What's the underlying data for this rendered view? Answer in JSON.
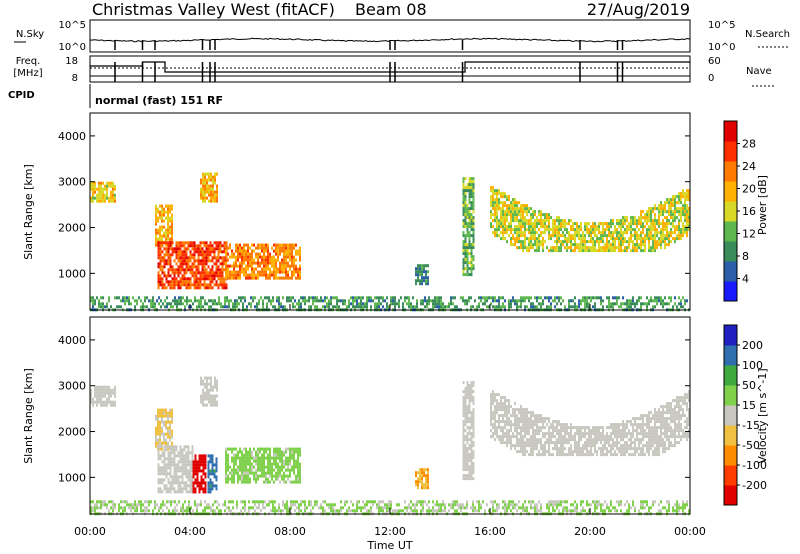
{
  "header": {
    "title": "Christmas Valley West (fitACF)",
    "beam": "Beam 08",
    "date": "27/Aug/2019"
  },
  "noise_panel": {
    "left_label": "N.Sky",
    "left_ticks": [
      "10^5",
      "10^0"
    ],
    "right_label": "N.Search",
    "right_ticks": [
      "10^5",
      "10^0"
    ]
  },
  "freq_panel": {
    "left_label_1": "Freq.",
    "left_label_2": "[MHz]",
    "left_ticks": [
      "18",
      "8"
    ],
    "right_label": "Nave",
    "right_ticks": [
      "60",
      "0"
    ]
  },
  "cpid": {
    "label": "CPID",
    "program": "normal (fast) 151 RF"
  },
  "colors": {
    "power_scale": [
      "#1a1aff",
      "#2c5fa8",
      "#3a8c5a",
      "#5fb84f",
      "#d8d826",
      "#ffb000",
      "#ff7a00",
      "#ff3000",
      "#e00000"
    ],
    "velocity_scale": [
      "#e00000",
      "#ff3c00",
      "#ff8c00",
      "#f0c040",
      "#c8c8c0",
      "#7fd04a",
      "#3fa83f",
      "#2f6fb0",
      "#2020c0"
    ],
    "ground_scatter": "#c8c8c0"
  },
  "chart_data": [
    {
      "type": "heatmap",
      "panel": "power",
      "ylabel": "Slant Range [km]",
      "yticks": [
        "1000",
        "2000",
        "3000",
        "4000"
      ],
      "ylim": [
        200,
        4500
      ],
      "xlim": [
        0,
        24
      ],
      "colorbar_label": "Power [dB]",
      "colorbar_ticks": [
        "4",
        "8",
        "12",
        "16",
        "20",
        "24",
        "28"
      ],
      "colorbar_range": [
        0,
        32
      ],
      "regions": [
        {
          "name": "early-ground-scatter",
          "t": [
            0.0,
            1.0
          ],
          "range": [
            2550,
            3000
          ],
          "value": 18
        },
        {
          "name": "morning-patch",
          "t": [
            2.6,
            3.3
          ],
          "range": [
            1600,
            2500
          ],
          "value": 20
        },
        {
          "name": "main-echo",
          "t": [
            2.7,
            5.5
          ],
          "range": [
            700,
            1700
          ],
          "value": 26
        },
        {
          "name": "streak-3000km",
          "t": [
            4.4,
            5.1
          ],
          "range": [
            2600,
            3200
          ],
          "value": 20
        },
        {
          "name": "daytime-echo",
          "t": [
            5.4,
            8.4
          ],
          "range": [
            900,
            1650
          ],
          "value": 22
        },
        {
          "name": "mid-patch",
          "t": [
            13.0,
            13.5
          ],
          "range": [
            800,
            1200
          ],
          "value": 8
        },
        {
          "name": "afternoon-patch",
          "t": [
            14.9,
            15.3
          ],
          "range": [
            1000,
            3100
          ],
          "value": 12
        },
        {
          "name": "evening-arc",
          "t": [
            16.0,
            24.0
          ],
          "range": [
            1500,
            3100
          ],
          "value": 16
        },
        {
          "name": "near-range",
          "t": [
            0.0,
            24.0
          ],
          "range": [
            200,
            500
          ],
          "value": 10
        }
      ]
    },
    {
      "type": "heatmap",
      "panel": "velocity",
      "ylabel": "Slant Range [km]",
      "yticks": [
        "1000",
        "2000",
        "3000",
        "4000"
      ],
      "ylim": [
        200,
        4500
      ],
      "xlim": [
        0,
        24
      ],
      "colorbar_label": "Velocity [m s^-1]",
      "colorbar_ticks": [
        "-200",
        "-100",
        "-50",
        "-15",
        "15",
        "50",
        "100",
        "200"
      ],
      "colorbar_range": [
        -250,
        250
      ],
      "regions": [
        {
          "name": "early-ground-scatter",
          "t": [
            0.0,
            1.0
          ],
          "range": [
            2550,
            3000
          ],
          "value": 0
        },
        {
          "name": "morning-patch",
          "t": [
            2.6,
            3.3
          ],
          "range": [
            1600,
            2500
          ],
          "value": -30
        },
        {
          "name": "main-echo-gs",
          "t": [
            2.7,
            4.1
          ],
          "range": [
            700,
            1700
          ],
          "value": 0
        },
        {
          "name": "main-echo-red",
          "t": [
            4.1,
            4.6
          ],
          "range": [
            700,
            1500
          ],
          "value": -220
        },
        {
          "name": "main-echo-blue",
          "t": [
            4.7,
            5.1
          ],
          "range": [
            700,
            1500
          ],
          "value": 150
        },
        {
          "name": "streak-3000km",
          "t": [
            4.4,
            5.1
          ],
          "range": [
            2600,
            3200
          ],
          "value": 0
        },
        {
          "name": "daytime-echo",
          "t": [
            5.4,
            8.4
          ],
          "range": [
            900,
            1650
          ],
          "value": 40
        },
        {
          "name": "mid-patch",
          "t": [
            13.0,
            13.5
          ],
          "range": [
            800,
            1200
          ],
          "value": -80
        },
        {
          "name": "afternoon-patch",
          "t": [
            14.9,
            15.3
          ],
          "range": [
            1000,
            3100
          ],
          "value": 0
        },
        {
          "name": "evening-arc",
          "t": [
            16.0,
            24.0
          ],
          "range": [
            1500,
            3100
          ],
          "value": 0
        },
        {
          "name": "near-range",
          "t": [
            0.0,
            24.0
          ],
          "range": [
            200,
            500
          ],
          "value": 20
        }
      ]
    }
  ],
  "x_axis": {
    "label": "Time UT",
    "ticks": [
      "00:00",
      "04:00",
      "08:00",
      "12:00",
      "16:00",
      "20:00",
      "00:00"
    ]
  }
}
